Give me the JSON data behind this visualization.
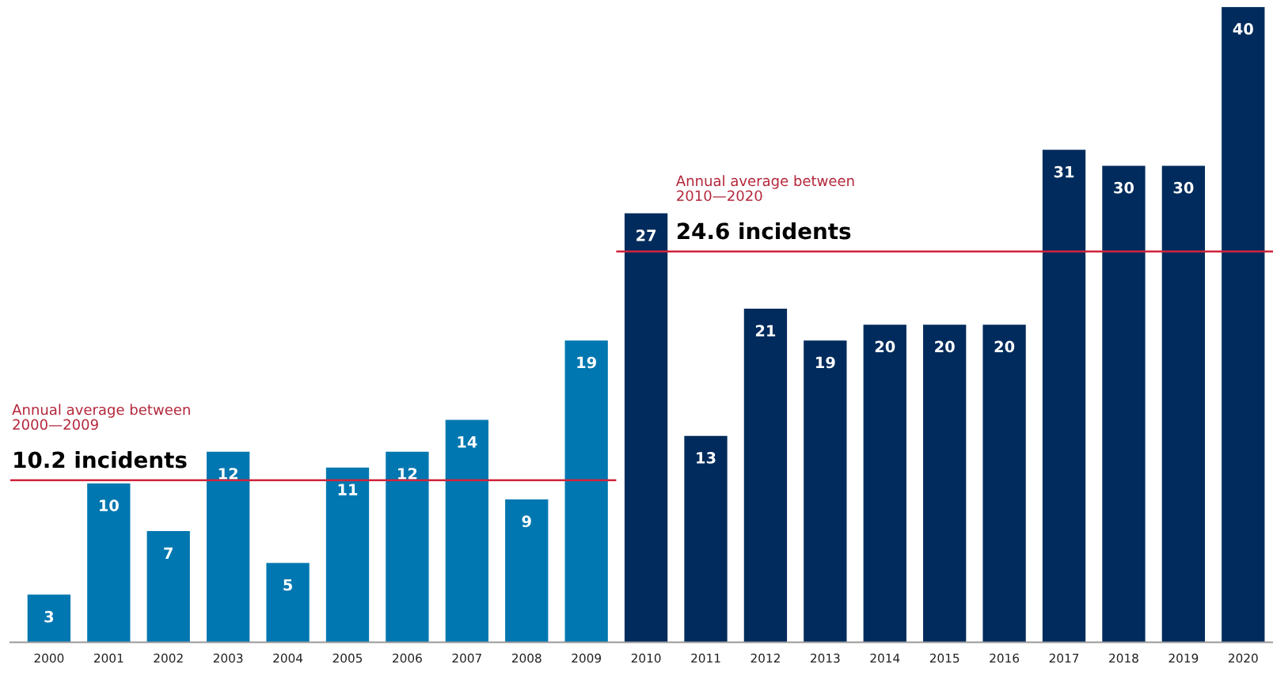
{
  "chart_data": {
    "type": "bar",
    "categories": [
      "2000",
      "2001",
      "2002",
      "2003",
      "2004",
      "2005",
      "2006",
      "2007",
      "2008",
      "2009",
      "2010",
      "2011",
      "2012",
      "2013",
      "2014",
      "2015",
      "2016",
      "2017",
      "2018",
      "2019",
      "2020"
    ],
    "values": [
      3,
      10,
      7,
      12,
      5,
      11,
      12,
      14,
      9,
      19,
      27,
      13,
      21,
      19,
      20,
      20,
      20,
      31,
      30,
      30,
      40
    ],
    "colors": [
      "#0077b0",
      "#0077b0",
      "#0077b0",
      "#0077b0",
      "#0077b0",
      "#0077b0",
      "#0077b0",
      "#0077b0",
      "#0077b0",
      "#0077b0",
      "#002b5c",
      "#002b5c",
      "#002b5c",
      "#002b5c",
      "#002b5c",
      "#002b5c",
      "#002b5c",
      "#002b5c",
      "#002b5c",
      "#002b5c",
      "#002b5c"
    ],
    "data_labels": true,
    "tick_labels": "x",
    "grid": false,
    "ref_lines": [
      {
        "axis": "y",
        "value": 10.2,
        "label": "10.2 incidents",
        "color": "#d0243c"
      },
      {
        "axis": "y",
        "value": 24.6,
        "label": "24.6 incidents",
        "color": "#d0243c"
      }
    ],
    "annotations": [
      "Annual average between\n2000—2009",
      "Annual average between\n2010—2020"
    ]
  }
}
